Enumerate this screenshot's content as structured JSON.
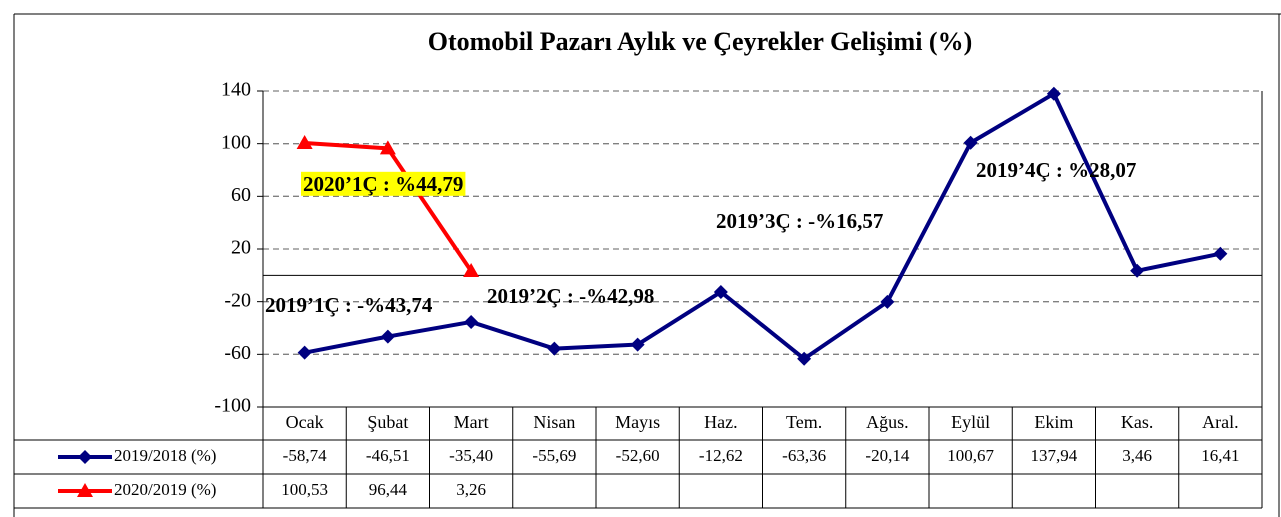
{
  "chart_data": {
    "type": "line",
    "title": "Otomobil Pazarı Aylık ve Çeyrekler Gelişimi (%)",
    "categories": [
      "Ocak",
      "Şubat",
      "Mart",
      "Nisan",
      "Mayıs",
      "Haz.",
      "Tem.",
      "Ağus.",
      "Eylül",
      "Ekim",
      "Kas.",
      "Aral."
    ],
    "series": [
      {
        "name": "2019/2018 (%)",
        "color": "#000080",
        "marker": "diamond",
        "values": [
          -58.74,
          -46.51,
          -35.4,
          -55.69,
          -52.6,
          -12.62,
          -63.36,
          -20.14,
          100.67,
          137.94,
          3.46,
          16.41
        ],
        "value_labels": [
          "-58,74",
          "-46,51",
          "-35,40",
          "-55,69",
          "-52,60",
          "-12,62",
          "-63,36",
          "-20,14",
          "100,67",
          "137,94",
          "3,46",
          "16,41"
        ]
      },
      {
        "name": "2020/2019 (%)",
        "color": "#ff0000",
        "marker": "triangle",
        "values": [
          100.53,
          96.44,
          3.26,
          null,
          null,
          null,
          null,
          null,
          null,
          null,
          null,
          null
        ],
        "value_labels": [
          "100,53",
          "96,44",
          "3,26",
          null,
          null,
          null,
          null,
          null,
          null,
          null,
          null,
          null
        ]
      }
    ],
    "ylim": [
      -100,
      140
    ],
    "yticks": [
      -100,
      -60,
      -20,
      20,
      60,
      100,
      140
    ],
    "grid": true,
    "annotations": [
      {
        "text": "2020’1Ç : %44,79",
        "highlight": "#ffff00"
      },
      {
        "text": "2019’1Ç : -%43,74"
      },
      {
        "text": "2019’2Ç : -%42,98"
      },
      {
        "text": "2019’3Ç : -%16,57"
      },
      {
        "text": "2019’4Ç : %28,07"
      }
    ]
  }
}
